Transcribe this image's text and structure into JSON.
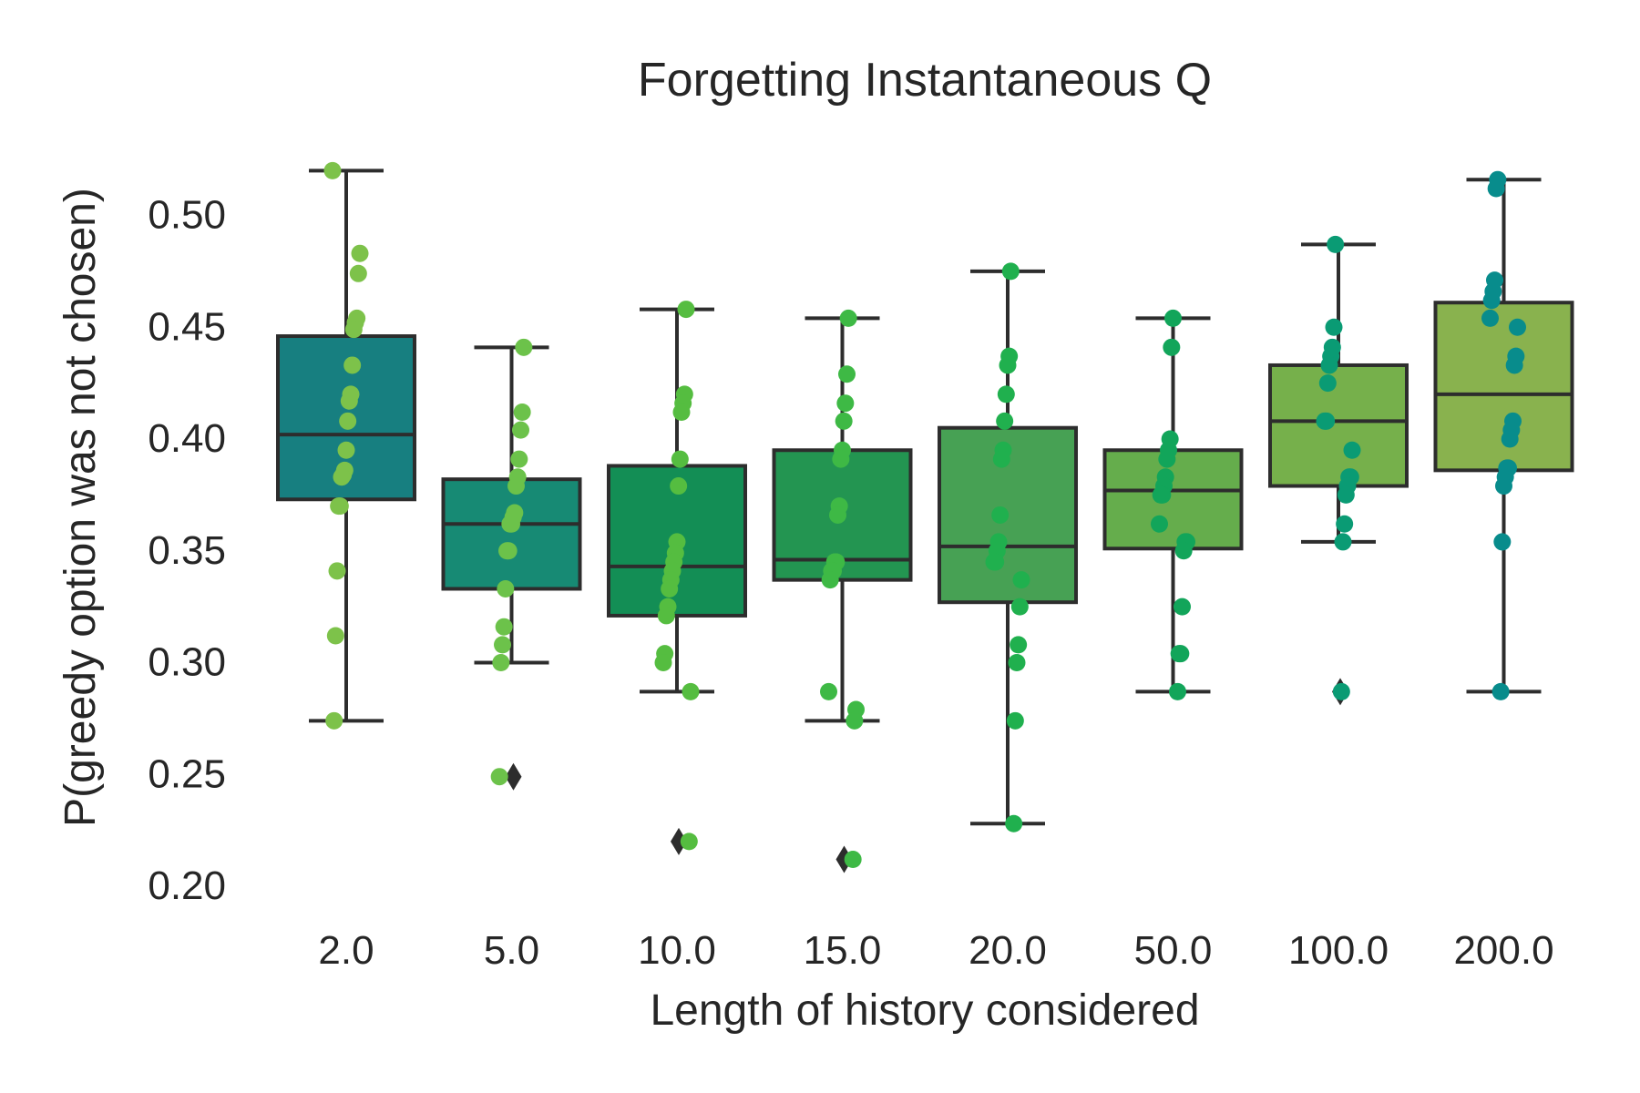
{
  "chart_data": {
    "type": "box",
    "title": "Forgetting Instantaneous Q",
    "xlabel": "Length of history considered",
    "ylabel": "P(greedy option was not chosen)",
    "ylim": [
      0.19,
      0.535
    ],
    "y_ticks": [
      0.2,
      0.25,
      0.3,
      0.35,
      0.4,
      0.45,
      0.5
    ],
    "y_tick_labels": [
      "0.20",
      "0.25",
      "0.30",
      "0.35",
      "0.40",
      "0.45",
      "0.50"
    ],
    "grid": false,
    "legend": "none",
    "categories": [
      "2.0",
      "5.0",
      "10.0",
      "15.0",
      "20.0",
      "50.0",
      "100.0",
      "200.0"
    ],
    "boxes": [
      {
        "category": "2.0",
        "color": "#177f80",
        "point_color": "#7dc24a",
        "q1": 0.374,
        "median": 0.403,
        "q3": 0.447,
        "whisker_low": 0.275,
        "whisker_high": 0.521,
        "outliers": [],
        "points": [
          0.521,
          0.484,
          0.475,
          0.455,
          0.453,
          0.45,
          0.434,
          0.421,
          0.418,
          0.409,
          0.396,
          0.387,
          0.385,
          0.384,
          0.371,
          0.371,
          0.342,
          0.313,
          0.275
        ]
      },
      {
        "category": "5.0",
        "color": "#178a74",
        "point_color": "#6cc24a",
        "q1": 0.334,
        "median": 0.363,
        "q3": 0.383,
        "whisker_low": 0.301,
        "whisker_high": 0.442,
        "outliers": [
          0.25
        ],
        "points": [
          0.442,
          0.413,
          0.405,
          0.392,
          0.384,
          0.38,
          0.368,
          0.366,
          0.363,
          0.363,
          0.351,
          0.351,
          0.334,
          0.317,
          0.309,
          0.301,
          0.25
        ]
      },
      {
        "category": "10.0",
        "color": "#138e55",
        "point_color": "#55bd40",
        "q1": 0.322,
        "median": 0.344,
        "q3": 0.389,
        "whisker_low": 0.288,
        "whisker_high": 0.459,
        "outliers": [
          0.221
        ],
        "points": [
          0.459,
          0.421,
          0.417,
          0.413,
          0.392,
          0.38,
          0.355,
          0.35,
          0.346,
          0.342,
          0.338,
          0.334,
          0.326,
          0.322,
          0.305,
          0.301,
          0.288,
          0.221
        ]
      },
      {
        "category": "15.0",
        "color": "#239551",
        "point_color": "#3eb945",
        "q1": 0.338,
        "median": 0.347,
        "q3": 0.396,
        "whisker_low": 0.275,
        "whisker_high": 0.455,
        "outliers": [
          0.213
        ],
        "points": [
          0.455,
          0.43,
          0.417,
          0.409,
          0.396,
          0.392,
          0.371,
          0.367,
          0.346,
          0.346,
          0.342,
          0.342,
          0.338,
          0.288,
          0.28,
          0.275,
          0.213
        ]
      },
      {
        "category": "20.0",
        "color": "#47a154",
        "point_color": "#20b04e",
        "q1": 0.328,
        "median": 0.353,
        "q3": 0.406,
        "whisker_low": 0.229,
        "whisker_high": 0.476,
        "outliers": [],
        "points": [
          0.476,
          0.438,
          0.434,
          0.421,
          0.409,
          0.396,
          0.392,
          0.367,
          0.355,
          0.351,
          0.346,
          0.346,
          0.338,
          0.326,
          0.309,
          0.301,
          0.275,
          0.229
        ]
      },
      {
        "category": "50.0",
        "color": "#65ad4c",
        "point_color": "#12a55a",
        "q1": 0.352,
        "median": 0.378,
        "q3": 0.396,
        "whisker_low": 0.288,
        "whisker_high": 0.455,
        "outliers": [],
        "points": [
          0.455,
          0.442,
          0.401,
          0.396,
          0.392,
          0.384,
          0.38,
          0.376,
          0.376,
          0.363,
          0.355,
          0.355,
          0.351,
          0.326,
          0.305,
          0.305,
          0.288
        ]
      },
      {
        "category": "100.0",
        "color": "#76b04b",
        "point_color": "#0a9b74",
        "q1": 0.38,
        "median": 0.409,
        "q3": 0.434,
        "whisker_low": 0.355,
        "whisker_high": 0.488,
        "outliers": [
          0.288
        ],
        "points": [
          0.488,
          0.451,
          0.442,
          0.438,
          0.434,
          0.426,
          0.409,
          0.409,
          0.396,
          0.384,
          0.384,
          0.38,
          0.376,
          0.363,
          0.355,
          0.288
        ]
      },
      {
        "category": "200.0",
        "color": "#89b24e",
        "point_color": "#088c8c",
        "q1": 0.387,
        "median": 0.421,
        "q3": 0.462,
        "whisker_low": 0.288,
        "whisker_high": 0.517,
        "outliers": [],
        "points": [
          0.517,
          0.513,
          0.472,
          0.467,
          0.463,
          0.455,
          0.451,
          0.438,
          0.434,
          0.409,
          0.405,
          0.401,
          0.388,
          0.388,
          0.384,
          0.38,
          0.355,
          0.288
        ]
      }
    ]
  }
}
